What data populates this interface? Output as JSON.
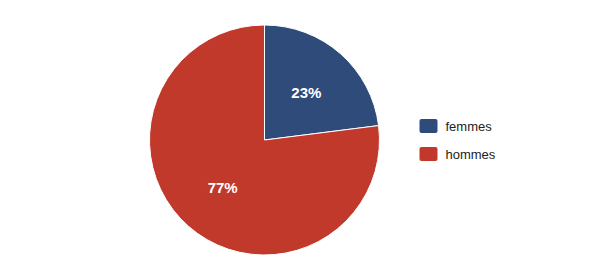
{
  "chart_data": {
    "type": "pie",
    "categories": [
      "femmes",
      "hommes"
    ],
    "values": [
      23,
      77
    ],
    "value_labels": [
      "23%",
      "77%"
    ],
    "colors": [
      "#2E4B7A",
      "#C0392B"
    ],
    "data_labels": true,
    "legend": "right"
  }
}
